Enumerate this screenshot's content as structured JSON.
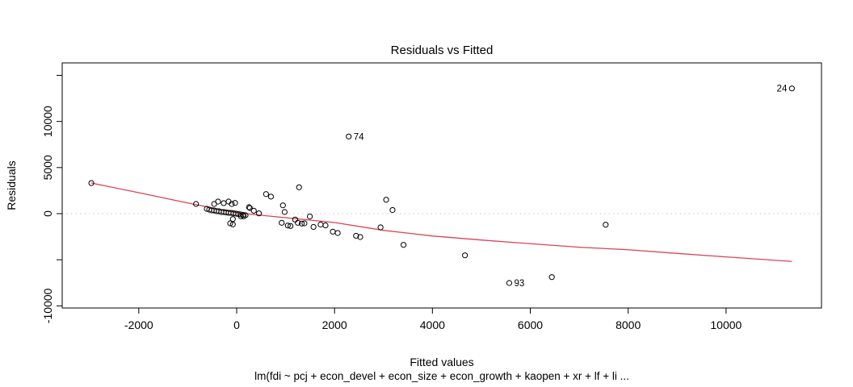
{
  "chart_data": {
    "type": "scatter",
    "title": "Residuals vs Fitted",
    "xlabel": "Fitted values",
    "ylabel": "Residuals",
    "sub_label": "lm(fdi ~ pcj + econ_devel + econ_size + econ_growth + kaopen + xr + lf + li ...",
    "xlim": [
      -3565,
      11950
    ],
    "ylim": [
      -10230,
      16350
    ],
    "x_ticks": [
      {
        "v": -2000,
        "label": "-2000"
      },
      {
        "v": 0,
        "label": "0"
      },
      {
        "v": 2000,
        "label": "2000"
      },
      {
        "v": 4000,
        "label": "4000"
      },
      {
        "v": 6000,
        "label": "6000"
      },
      {
        "v": 8000,
        "label": "8000"
      },
      {
        "v": 10000,
        "label": "10000"
      }
    ],
    "y_ticks": [
      {
        "v": 15000,
        "label": ""
      },
      {
        "v": 10000,
        "label": "10000"
      },
      {
        "v": 5000,
        "label": "5000"
      },
      {
        "v": 0,
        "label": "0"
      },
      {
        "v": -5000,
        "label": ""
      },
      {
        "v": -10000,
        "label": "-10000"
      }
    ],
    "grid": "off",
    "legend": "none",
    "zero_line": {
      "y": 0,
      "style": "dotted"
    },
    "points": [
      [
        -2970,
        3320
      ],
      [
        -830,
        1050
      ],
      [
        -460,
        1050
      ],
      [
        -380,
        1310
      ],
      [
        -265,
        1140
      ],
      [
        -165,
        1310
      ],
      [
        -100,
        1050
      ],
      [
        -33,
        1160
      ],
      [
        -610,
        525
      ],
      [
        -561,
        437
      ],
      [
        -512,
        350
      ],
      [
        -462,
        350
      ],
      [
        -413,
        262
      ],
      [
        -363,
        262
      ],
      [
        -314,
        175
      ],
      [
        -264,
        175
      ],
      [
        -215,
        131
      ],
      [
        -165,
        87
      ],
      [
        -116,
        87
      ],
      [
        -66,
        44
      ],
      [
        -17,
        0
      ],
      [
        33,
        -44
      ],
      [
        82,
        -87
      ],
      [
        132,
        -131
      ],
      [
        181,
        -175
      ],
      [
        252,
        700
      ],
      [
        269,
        612
      ],
      [
        -78,
        -586
      ],
      [
        -132,
        -1049
      ],
      [
        -78,
        -1163
      ],
      [
        87,
        -288
      ],
      [
        144,
        -288
      ],
      [
        350,
        320
      ],
      [
        455,
        30
      ],
      [
        600,
        2120
      ],
      [
        700,
        1850
      ],
      [
        1275,
        2860
      ],
      [
        945,
        900
      ],
      [
        980,
        175
      ],
      [
        920,
        -990
      ],
      [
        1045,
        -1285
      ],
      [
        1100,
        -1340
      ],
      [
        1195,
        -640
      ],
      [
        1250,
        -990
      ],
      [
        1330,
        -1075
      ],
      [
        1385,
        -1050
      ],
      [
        1495,
        -305
      ],
      [
        1570,
        -1440
      ],
      [
        1715,
        -1180
      ],
      [
        1815,
        -1270
      ],
      [
        1965,
        -1950
      ],
      [
        2065,
        -2100
      ],
      [
        2440,
        -2400
      ],
      [
        2525,
        -2535
      ],
      [
        2940,
        -1485
      ],
      [
        3055,
        1505
      ],
      [
        3185,
        395
      ],
      [
        3410,
        -3385
      ],
      [
        4665,
        -4520
      ],
      [
        6440,
        -6880
      ],
      [
        7540,
        -1200
      ]
    ],
    "labeled_points": [
      {
        "label": "24",
        "x": 11345,
        "y": 13580,
        "side": "left"
      },
      {
        "label": "74",
        "x": 2290,
        "y": 8365,
        "side": "right"
      },
      {
        "label": "93",
        "x": 5570,
        "y": -7520,
        "side": "right"
      }
    ],
    "smoother": {
      "name": "lowess",
      "points": [
        [
          -2970,
          3320
        ],
        [
          -2000,
          2270
        ],
        [
          -1000,
          1160
        ],
        [
          0,
          90
        ],
        [
          1000,
          -440
        ],
        [
          2000,
          -960
        ],
        [
          3000,
          -1810
        ],
        [
          4000,
          -2420
        ],
        [
          5000,
          -2860
        ],
        [
          6000,
          -3260
        ],
        [
          7000,
          -3640
        ],
        [
          8000,
          -3910
        ],
        [
          9000,
          -4310
        ],
        [
          10000,
          -4690
        ],
        [
          11345,
          -5180
        ]
      ]
    },
    "colors": {
      "point_stroke": "#000000",
      "smoother_line": "#dc4355",
      "zero_line": "#c6c6c6",
      "axis": "#000000"
    }
  }
}
